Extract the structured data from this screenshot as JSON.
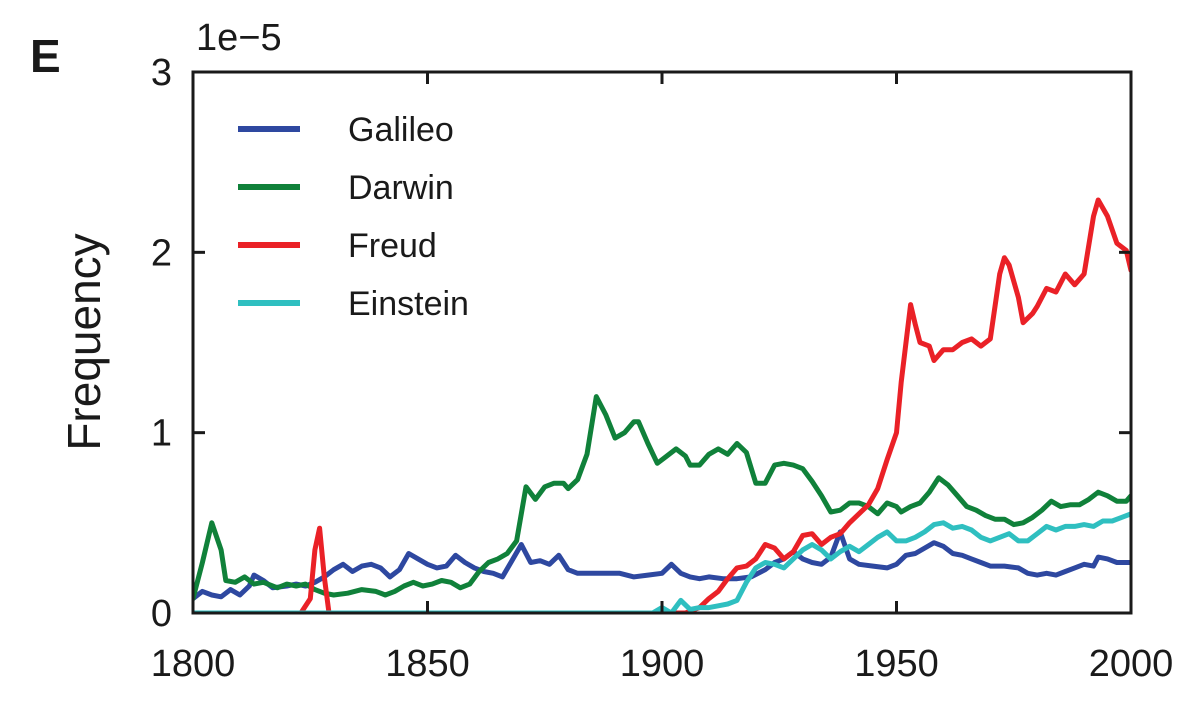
{
  "panel_label": "E",
  "chart_data": {
    "type": "line",
    "title": "",
    "xlabel": "",
    "ylabel": "Frequency",
    "y_multiplier": "1e−5",
    "xlim": [
      1800,
      2000
    ],
    "ylim": [
      0,
      3
    ],
    "xticks": [
      1800,
      1850,
      1900,
      1950,
      2000
    ],
    "xtick_labels": [
      "1800",
      "1850",
      "1900",
      "1950",
      "2000"
    ],
    "yticks": [
      0,
      1,
      2,
      3
    ],
    "ytick_labels": [
      "0",
      "1",
      "2",
      "3"
    ],
    "grid": false,
    "legend_position": "top-left",
    "series": [
      {
        "name": "Galileo",
        "color": "#2e48a0",
        "points": [
          [
            1800,
            0.08
          ],
          [
            1802,
            0.12
          ],
          [
            1804,
            0.1
          ],
          [
            1806,
            0.09
          ],
          [
            1808,
            0.13
          ],
          [
            1810,
            0.1
          ],
          [
            1812,
            0.15
          ],
          [
            1813,
            0.21
          ],
          [
            1815,
            0.18
          ],
          [
            1817,
            0.14
          ],
          [
            1820,
            0.15
          ],
          [
            1822,
            0.16
          ],
          [
            1824,
            0.15
          ],
          [
            1826,
            0.17
          ],
          [
            1828,
            0.2
          ],
          [
            1830,
            0.24
          ],
          [
            1832,
            0.27
          ],
          [
            1834,
            0.23
          ],
          [
            1836,
            0.26
          ],
          [
            1838,
            0.27
          ],
          [
            1840,
            0.25
          ],
          [
            1842,
            0.2
          ],
          [
            1844,
            0.24
          ],
          [
            1846,
            0.33
          ],
          [
            1848,
            0.3
          ],
          [
            1850,
            0.27
          ],
          [
            1852,
            0.25
          ],
          [
            1854,
            0.26
          ],
          [
            1856,
            0.32
          ],
          [
            1858,
            0.28
          ],
          [
            1860,
            0.25
          ],
          [
            1862,
            0.23
          ],
          [
            1864,
            0.22
          ],
          [
            1866,
            0.2
          ],
          [
            1868,
            0.29
          ],
          [
            1870,
            0.38
          ],
          [
            1872,
            0.28
          ],
          [
            1874,
            0.29
          ],
          [
            1876,
            0.27
          ],
          [
            1878,
            0.32
          ],
          [
            1880,
            0.24
          ],
          [
            1882,
            0.22
          ],
          [
            1885,
            0.22
          ],
          [
            1888,
            0.22
          ],
          [
            1891,
            0.22
          ],
          [
            1894,
            0.2
          ],
          [
            1897,
            0.21
          ],
          [
            1900,
            0.22
          ],
          [
            1902,
            0.27
          ],
          [
            1904,
            0.22
          ],
          [
            1906,
            0.2
          ],
          [
            1908,
            0.19
          ],
          [
            1910,
            0.2
          ],
          [
            1913,
            0.19
          ],
          [
            1916,
            0.19
          ],
          [
            1919,
            0.2
          ],
          [
            1922,
            0.24
          ],
          [
            1924,
            0.28
          ],
          [
            1926,
            0.3
          ],
          [
            1928,
            0.34
          ],
          [
            1930,
            0.3
          ],
          [
            1932,
            0.28
          ],
          [
            1934,
            0.27
          ],
          [
            1936,
            0.31
          ],
          [
            1938,
            0.45
          ],
          [
            1940,
            0.3
          ],
          [
            1942,
            0.27
          ],
          [
            1945,
            0.26
          ],
          [
            1948,
            0.25
          ],
          [
            1950,
            0.27
          ],
          [
            1952,
            0.32
          ],
          [
            1954,
            0.33
          ],
          [
            1956,
            0.36
          ],
          [
            1958,
            0.39
          ],
          [
            1960,
            0.37
          ],
          [
            1962,
            0.33
          ],
          [
            1964,
            0.32
          ],
          [
            1966,
            0.3
          ],
          [
            1968,
            0.28
          ],
          [
            1970,
            0.26
          ],
          [
            1973,
            0.26
          ],
          [
            1976,
            0.25
          ],
          [
            1978,
            0.22
          ],
          [
            1980,
            0.21
          ],
          [
            1982,
            0.22
          ],
          [
            1984,
            0.21
          ],
          [
            1986,
            0.23
          ],
          [
            1988,
            0.25
          ],
          [
            1990,
            0.27
          ],
          [
            1992,
            0.26
          ],
          [
            1993,
            0.31
          ],
          [
            1995,
            0.3
          ],
          [
            1997,
            0.28
          ],
          [
            1999,
            0.28
          ],
          [
            2000,
            0.28
          ]
        ]
      },
      {
        "name": "Darwin",
        "color": "#10813a",
        "points": [
          [
            1800,
            0.08
          ],
          [
            1802,
            0.28
          ],
          [
            1804,
            0.5
          ],
          [
            1806,
            0.35
          ],
          [
            1807,
            0.18
          ],
          [
            1809,
            0.17
          ],
          [
            1811,
            0.2
          ],
          [
            1813,
            0.16
          ],
          [
            1815,
            0.17
          ],
          [
            1818,
            0.14
          ],
          [
            1820,
            0.16
          ],
          [
            1822,
            0.15
          ],
          [
            1824,
            0.16
          ],
          [
            1826,
            0.13
          ],
          [
            1828,
            0.11
          ],
          [
            1830,
            0.1
          ],
          [
            1833,
            0.11
          ],
          [
            1836,
            0.13
          ],
          [
            1839,
            0.12
          ],
          [
            1841,
            0.1
          ],
          [
            1843,
            0.12
          ],
          [
            1845,
            0.15
          ],
          [
            1847,
            0.17
          ],
          [
            1849,
            0.15
          ],
          [
            1851,
            0.16
          ],
          [
            1853,
            0.18
          ],
          [
            1855,
            0.17
          ],
          [
            1857,
            0.14
          ],
          [
            1859,
            0.16
          ],
          [
            1861,
            0.23
          ],
          [
            1863,
            0.28
          ],
          [
            1865,
            0.3
          ],
          [
            1867,
            0.33
          ],
          [
            1869,
            0.4
          ],
          [
            1871,
            0.7
          ],
          [
            1873,
            0.63
          ],
          [
            1875,
            0.7
          ],
          [
            1877,
            0.72
          ],
          [
            1879,
            0.72
          ],
          [
            1880,
            0.69
          ],
          [
            1882,
            0.74
          ],
          [
            1884,
            0.88
          ],
          [
            1886,
            1.2
          ],
          [
            1888,
            1.1
          ],
          [
            1890,
            0.97
          ],
          [
            1892,
            1.0
          ],
          [
            1894,
            1.06
          ],
          [
            1895,
            1.06
          ],
          [
            1897,
            0.94
          ],
          [
            1899,
            0.83
          ],
          [
            1901,
            0.87
          ],
          [
            1903,
            0.91
          ],
          [
            1905,
            0.87
          ],
          [
            1906,
            0.82
          ],
          [
            1908,
            0.82
          ],
          [
            1910,
            0.88
          ],
          [
            1912,
            0.91
          ],
          [
            1914,
            0.88
          ],
          [
            1916,
            0.94
          ],
          [
            1918,
            0.89
          ],
          [
            1920,
            0.72
          ],
          [
            1922,
            0.72
          ],
          [
            1924,
            0.82
          ],
          [
            1926,
            0.83
          ],
          [
            1928,
            0.82
          ],
          [
            1930,
            0.8
          ],
          [
            1932,
            0.73
          ],
          [
            1934,
            0.65
          ],
          [
            1936,
            0.56
          ],
          [
            1938,
            0.57
          ],
          [
            1940,
            0.61
          ],
          [
            1942,
            0.61
          ],
          [
            1944,
            0.59
          ],
          [
            1946,
            0.55
          ],
          [
            1948,
            0.61
          ],
          [
            1950,
            0.59
          ],
          [
            1951,
            0.56
          ],
          [
            1953,
            0.59
          ],
          [
            1955,
            0.61
          ],
          [
            1957,
            0.67
          ],
          [
            1959,
            0.75
          ],
          [
            1961,
            0.71
          ],
          [
            1963,
            0.65
          ],
          [
            1965,
            0.59
          ],
          [
            1967,
            0.57
          ],
          [
            1969,
            0.54
          ],
          [
            1971,
            0.52
          ],
          [
            1973,
            0.52
          ],
          [
            1975,
            0.49
          ],
          [
            1977,
            0.5
          ],
          [
            1979,
            0.53
          ],
          [
            1981,
            0.57
          ],
          [
            1983,
            0.62
          ],
          [
            1985,
            0.59
          ],
          [
            1987,
            0.6
          ],
          [
            1989,
            0.6
          ],
          [
            1991,
            0.63
          ],
          [
            1993,
            0.67
          ],
          [
            1995,
            0.65
          ],
          [
            1997,
            0.62
          ],
          [
            1999,
            0.62
          ],
          [
            2000,
            0.65
          ]
        ]
      },
      {
        "name": "Freud",
        "color": "#ea2127",
        "points": [
          [
            1820,
            0.0
          ],
          [
            1823,
            0.0
          ],
          [
            1825,
            0.08
          ],
          [
            1826,
            0.35
          ],
          [
            1827,
            0.47
          ],
          [
            1828,
            0.2
          ],
          [
            1829,
            0.0
          ],
          [
            1900,
            0.0
          ],
          [
            1905,
            0.0
          ],
          [
            1908,
            0.03
          ],
          [
            1910,
            0.08
          ],
          [
            1912,
            0.12
          ],
          [
            1914,
            0.19
          ],
          [
            1916,
            0.25
          ],
          [
            1918,
            0.26
          ],
          [
            1920,
            0.3
          ],
          [
            1922,
            0.38
          ],
          [
            1924,
            0.36
          ],
          [
            1926,
            0.3
          ],
          [
            1928,
            0.34
          ],
          [
            1930,
            0.43
          ],
          [
            1932,
            0.44
          ],
          [
            1934,
            0.38
          ],
          [
            1936,
            0.42
          ],
          [
            1938,
            0.44
          ],
          [
            1940,
            0.5
          ],
          [
            1942,
            0.55
          ],
          [
            1944,
            0.6
          ],
          [
            1946,
            0.69
          ],
          [
            1948,
            0.85
          ],
          [
            1950,
            1.0
          ],
          [
            1951,
            1.28
          ],
          [
            1953,
            1.71
          ],
          [
            1954,
            1.6
          ],
          [
            1955,
            1.5
          ],
          [
            1957,
            1.48
          ],
          [
            1958,
            1.4
          ],
          [
            1960,
            1.46
          ],
          [
            1962,
            1.46
          ],
          [
            1964,
            1.5
          ],
          [
            1966,
            1.52
          ],
          [
            1968,
            1.48
          ],
          [
            1970,
            1.52
          ],
          [
            1972,
            1.88
          ],
          [
            1973,
            1.97
          ],
          [
            1974,
            1.93
          ],
          [
            1976,
            1.75
          ],
          [
            1977,
            1.61
          ],
          [
            1979,
            1.66
          ],
          [
            1980,
            1.7
          ],
          [
            1982,
            1.8
          ],
          [
            1984,
            1.78
          ],
          [
            1986,
            1.88
          ],
          [
            1988,
            1.82
          ],
          [
            1990,
            1.88
          ],
          [
            1992,
            2.2
          ],
          [
            1993,
            2.29
          ],
          [
            1995,
            2.2
          ],
          [
            1997,
            2.05
          ],
          [
            1999,
            2.01
          ],
          [
            2000,
            1.9
          ]
        ]
      },
      {
        "name": "Einstein",
        "color": "#2fbfc0",
        "points": [
          [
            1800,
            0.0
          ],
          [
            1895,
            0.0
          ],
          [
            1898,
            0.0
          ],
          [
            1900,
            0.03
          ],
          [
            1902,
            0.0
          ],
          [
            1904,
            0.07
          ],
          [
            1906,
            0.02
          ],
          [
            1908,
            0.03
          ],
          [
            1910,
            0.03
          ],
          [
            1912,
            0.04
          ],
          [
            1914,
            0.05
          ],
          [
            1916,
            0.07
          ],
          [
            1918,
            0.17
          ],
          [
            1920,
            0.25
          ],
          [
            1922,
            0.28
          ],
          [
            1924,
            0.27
          ],
          [
            1926,
            0.25
          ],
          [
            1928,
            0.3
          ],
          [
            1930,
            0.35
          ],
          [
            1932,
            0.38
          ],
          [
            1934,
            0.35
          ],
          [
            1936,
            0.3
          ],
          [
            1938,
            0.34
          ],
          [
            1940,
            0.37
          ],
          [
            1942,
            0.34
          ],
          [
            1944,
            0.38
          ],
          [
            1946,
            0.42
          ],
          [
            1948,
            0.45
          ],
          [
            1950,
            0.4
          ],
          [
            1952,
            0.4
          ],
          [
            1954,
            0.42
          ],
          [
            1956,
            0.45
          ],
          [
            1958,
            0.49
          ],
          [
            1960,
            0.5
          ],
          [
            1962,
            0.47
          ],
          [
            1964,
            0.48
          ],
          [
            1966,
            0.46
          ],
          [
            1968,
            0.42
          ],
          [
            1970,
            0.4
          ],
          [
            1972,
            0.42
          ],
          [
            1974,
            0.44
          ],
          [
            1976,
            0.4
          ],
          [
            1978,
            0.4
          ],
          [
            1980,
            0.44
          ],
          [
            1982,
            0.48
          ],
          [
            1984,
            0.46
          ],
          [
            1986,
            0.48
          ],
          [
            1988,
            0.48
          ],
          [
            1990,
            0.49
          ],
          [
            1992,
            0.48
          ],
          [
            1994,
            0.51
          ],
          [
            1996,
            0.51
          ],
          [
            1998,
            0.53
          ],
          [
            2000,
            0.55
          ]
        ]
      }
    ]
  }
}
